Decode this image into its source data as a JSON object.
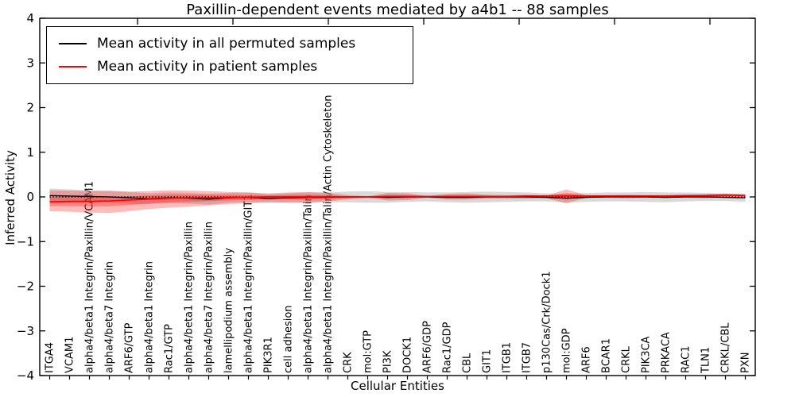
{
  "title": "Paxillin-dependent events mediated by a4b1 -- 88 samples",
  "xlabel": "Cellular Entities",
  "ylabel": "Inferred Activity",
  "legend": [
    {
      "label": "Mean activity in all permuted samples",
      "color": "#000000"
    },
    {
      "label": "Mean activity in patient samples",
      "color": "#ff0000"
    }
  ],
  "colors": {
    "permuted_line": "#000000",
    "patient_line": "#ff0000",
    "permuted_band": "#aaaaaa",
    "patient_band": "#ff0000",
    "axis": "#000000"
  },
  "chart_data": {
    "type": "line",
    "title": "Paxillin-dependent events mediated by a4b1 -- 88 samples",
    "xlabel": "Cellular Entities",
    "ylabel": "Inferred Activity",
    "ylim": [
      -4,
      4
    ],
    "ytick_labels": [
      "4",
      "3",
      "2",
      "1",
      "0",
      "−1",
      "−2",
      "−3",
      "−4"
    ],
    "grid": false,
    "legend_position": "upper left",
    "categories": [
      "ITGA4",
      "VCAM1",
      "alpha4/beta1 Integrin/Paxillin/VCAM1",
      "alpha4/beta7 Integrin",
      "ARF6/GTP",
      "alpha4/beta1 Integrin",
      "Rac1/GTP",
      "alpha4/beta1 Integrin/Paxillin",
      "alpha4/beta7 Integrin/Paxillin",
      "lamellipodium assembly",
      "alpha4/beta1 Integrin/Paxillin/GIT1",
      "PIK3R1",
      "cell adhesion",
      "alpha4/beta1 Integrin/Paxillin/Talin",
      "alpha4/beta1 Integrin/Paxillin/Talin/Actin Cytoskeleton",
      "CRK",
      "mol:GTP",
      "PI3K",
      "DOCK1",
      "ARF6/GDP",
      "Rac1/GDP",
      "CBL",
      "GIT1",
      "ITGB1",
      "ITGB7",
      "p130Cas/Crk/Dock1",
      "mol:GDP",
      "ARF6",
      "BCAR1",
      "CRKL",
      "PIK3CA",
      "PRKACA",
      "RAC1",
      "TLN1",
      "CRKL/CBL",
      "PXN"
    ],
    "series": [
      {
        "name": "Mean activity in all permuted samples",
        "style": "solid",
        "color": "#000000",
        "values": [
          0.03,
          0.02,
          0.01,
          0.0,
          -0.02,
          -0.04,
          -0.02,
          -0.03,
          -0.05,
          -0.02,
          -0.01,
          -0.04,
          -0.02,
          -0.01,
          -0.01,
          0.0,
          0.0,
          -0.01,
          0.0,
          0.0,
          -0.01,
          -0.01,
          0.0,
          0.0,
          0.0,
          -0.01,
          -0.03,
          -0.01,
          0.0,
          0.0,
          0.0,
          -0.01,
          0.0,
          0.0,
          -0.01,
          -0.02
        ]
      },
      {
        "name": "Mean activity in patient samples",
        "style": "solid",
        "color": "#ff0000",
        "values": [
          -0.11,
          -0.1,
          -0.1,
          -0.09,
          -0.07,
          -0.05,
          -0.03,
          -0.02,
          -0.02,
          -0.01,
          -0.01,
          0.0,
          0.0,
          0.0,
          0.0,
          0.0,
          0.0,
          0.01,
          0.01,
          0.01,
          0.01,
          0.01,
          0.01,
          0.01,
          0.02,
          0.02,
          0.02,
          0.02,
          0.02,
          0.02,
          0.02,
          0.02,
          0.03,
          0.03,
          0.04,
          0.03
        ]
      },
      {
        "name": "zero reference",
        "style": "dotted",
        "color": "#000000",
        "values": [
          0,
          0,
          0,
          0,
          0,
          0,
          0,
          0,
          0,
          0,
          0,
          0,
          0,
          0,
          0,
          0,
          0,
          0,
          0,
          0,
          0,
          0,
          0,
          0,
          0,
          0,
          0,
          0,
          0,
          0,
          0,
          0,
          0,
          0,
          0,
          0
        ]
      }
    ],
    "bands": {
      "permuted_halfwidth": [
        0.16,
        0.15,
        0.14,
        0.13,
        0.13,
        0.12,
        0.12,
        0.12,
        0.12,
        0.11,
        0.11,
        0.1,
        0.1,
        0.11,
        0.11,
        0.12,
        0.13,
        0.12,
        0.11,
        0.1,
        0.11,
        0.12,
        0.12,
        0.11,
        0.1,
        0.09,
        0.1,
        0.1,
        0.1,
        0.1,
        0.11,
        0.11,
        0.1,
        0.09,
        0.08,
        0.09
      ],
      "patient_upper": [
        0.15,
        0.14,
        0.13,
        0.14,
        0.12,
        0.13,
        0.15,
        0.14,
        0.13,
        0.11,
        0.1,
        0.08,
        0.1,
        0.11,
        0.09,
        0.04,
        0.015,
        0.09,
        0.08,
        0.02,
        0.07,
        0.08,
        0.05,
        0.04,
        0.05,
        0.03,
        0.17,
        0.04,
        0.04,
        0.05,
        0.04,
        0.04,
        0.05,
        0.06,
        0.08,
        0.06
      ],
      "patient_lower": [
        -0.32,
        -0.33,
        -0.35,
        -0.36,
        -0.32,
        -0.27,
        -0.24,
        -0.22,
        -0.19,
        -0.16,
        -0.14,
        -0.11,
        -0.13,
        -0.13,
        -0.1,
        -0.05,
        -0.015,
        -0.08,
        -0.07,
        -0.02,
        -0.06,
        -0.06,
        -0.04,
        -0.04,
        -0.04,
        -0.03,
        -0.14,
        -0.02,
        -0.02,
        -0.03,
        -0.02,
        -0.02,
        -0.02,
        -0.03,
        -0.02,
        0.0
      ],
      "patient_inner_scale": 0.45
    },
    "top_ticks_x": [
      173,
      293,
      413,
      533,
      653,
      773,
      893
    ]
  }
}
